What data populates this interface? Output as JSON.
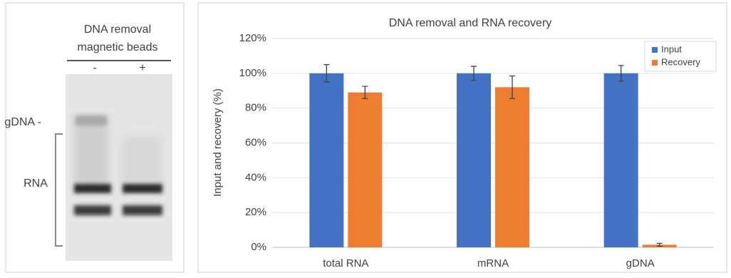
{
  "gel": {
    "heading": [
      "DNA removal",
      "magnetic beads"
    ],
    "lanes": [
      "-",
      "+"
    ],
    "labels": [
      "gDNA -",
      "RNA"
    ]
  },
  "chart_data": {
    "type": "bar",
    "title": "DNA removal and RNA recovery",
    "y_label": "Input and recovery (%)",
    "categories": [
      "total RNA",
      "mRNA",
      "gDNA"
    ],
    "series": [
      {
        "name": "Input",
        "color": "#4472c4",
        "values": [
          100,
          100,
          100
        ],
        "errors": [
          5,
          4,
          4.5
        ]
      },
      {
        "name": "Recovery",
        "color": "#ed7d31",
        "values": [
          89,
          92,
          1.5
        ],
        "errors": [
          3.5,
          6.5,
          0.8
        ]
      }
    ],
    "ylim": [
      0,
      120
    ],
    "yticks": [
      {
        "value": 0,
        "label": "0%"
      },
      {
        "value": 20,
        "label": "20%"
      },
      {
        "value": 40,
        "label": "40%"
      },
      {
        "value": 60,
        "label": "60%"
      },
      {
        "value": 80,
        "label": "80%"
      },
      {
        "value": 100,
        "label": "100%"
      },
      {
        "value": 120,
        "label": "120%"
      }
    ],
    "grid": true,
    "legend": "top-right"
  }
}
